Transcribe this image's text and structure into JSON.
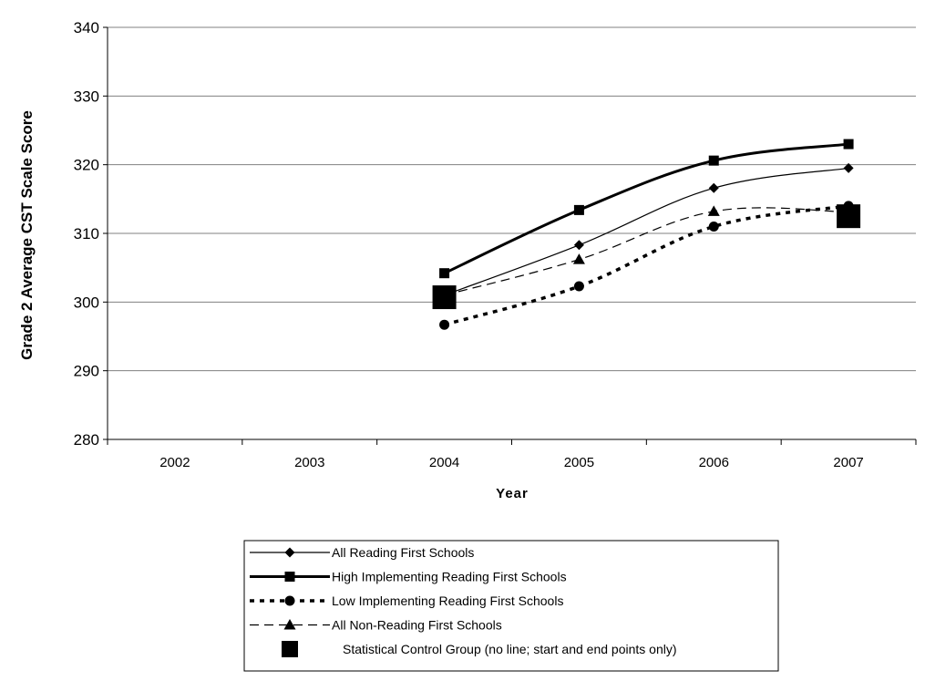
{
  "chart_data": {
    "type": "line",
    "title": "",
    "xlabel": "Year",
    "ylabel": "Grade 2 Average CST Scale Score",
    "categories": [
      "2002",
      "2003",
      "2004",
      "2005",
      "2006",
      "2007"
    ],
    "ylim": [
      280,
      340
    ],
    "yticks": [
      280,
      290,
      300,
      310,
      320,
      330,
      340
    ],
    "grid": "horizontal",
    "legend_position": "bottom",
    "series": [
      {
        "name": "All Reading First Schools",
        "marker": "diamond",
        "line": "solid-thin",
        "color": "#000000",
        "values": [
          null,
          null,
          301,
          308.3,
          316.6,
          319.5
        ]
      },
      {
        "name": "High Implementing Reading First Schools",
        "marker": "square",
        "line": "solid-thick",
        "color": "#000000",
        "values": [
          null,
          null,
          304.2,
          313.4,
          320.6,
          323
        ]
      },
      {
        "name": "Low Implementing Reading First Schools",
        "marker": "circle",
        "line": "dotted-thick",
        "color": "#000000",
        "values": [
          null,
          null,
          296.7,
          302.3,
          311,
          314
        ]
      },
      {
        "name": "All Non-Reading First Schools",
        "marker": "triangle",
        "line": "dashed-thin",
        "color": "#000000",
        "values": [
          null,
          null,
          301,
          306.2,
          313.2,
          313.1
        ]
      },
      {
        "name": "Statistical Control Group (no line; start and end points only)",
        "marker": "big-square",
        "line": "none",
        "color": "#000000",
        "values": [
          null,
          null,
          300.7,
          null,
          null,
          312.5
        ]
      }
    ]
  }
}
